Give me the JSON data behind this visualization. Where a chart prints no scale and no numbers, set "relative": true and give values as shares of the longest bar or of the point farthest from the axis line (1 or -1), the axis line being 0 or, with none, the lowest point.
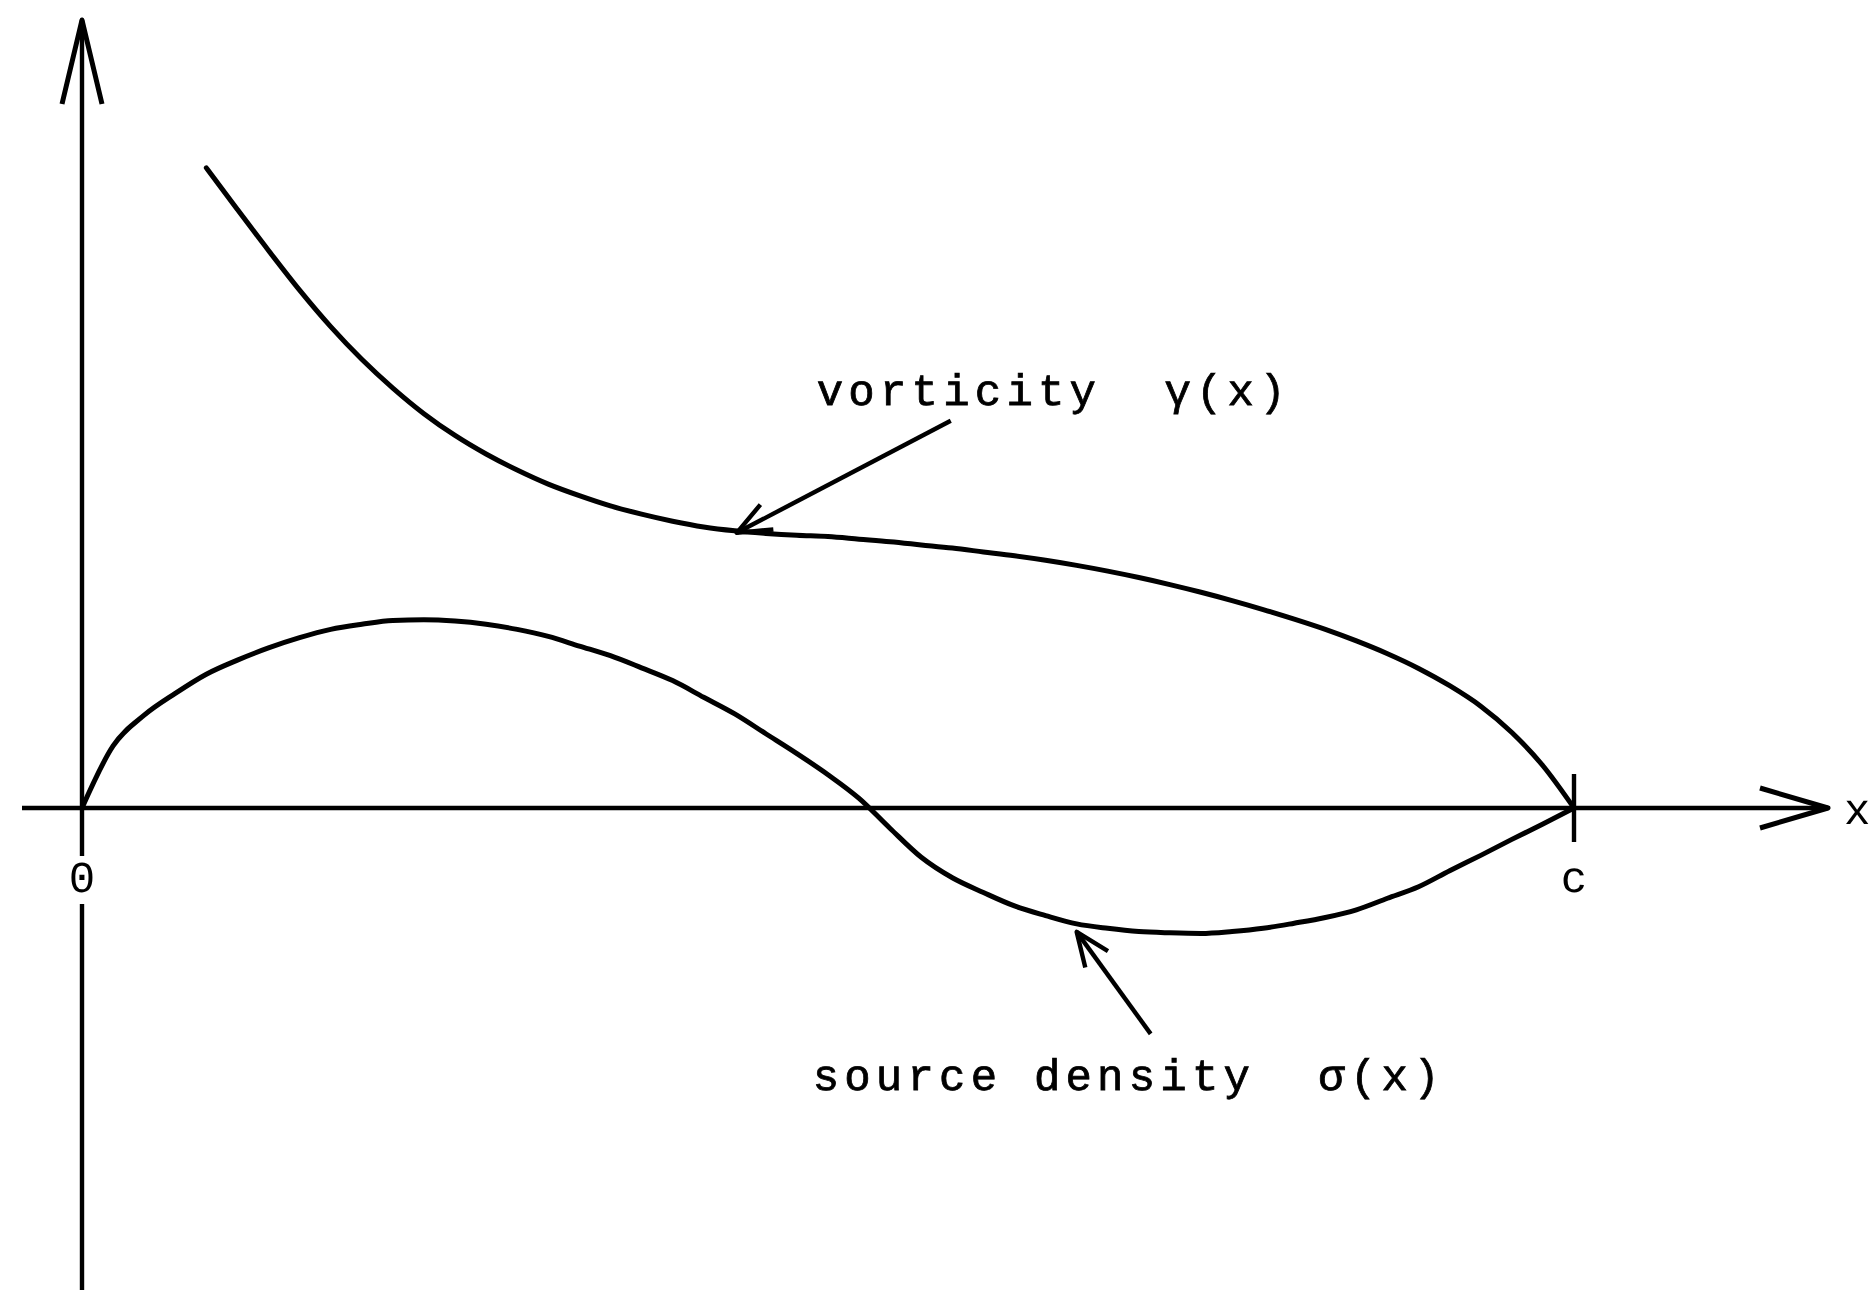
{
  "chart_data": {
    "type": "line",
    "relative": true,
    "marker": "none",
    "line_style": "solid",
    "annotations": [
      "x"
    ],
    "categories": [
      "0",
      null,
      null,
      null,
      null,
      null,
      null,
      null,
      null,
      null,
      null,
      null,
      null,
      null,
      null,
      null,
      null,
      null,
      null,
      null,
      null,
      null,
      null,
      null,
      null,
      null,
      null,
      null,
      null,
      null,
      null,
      null,
      null,
      null,
      null,
      null,
      null,
      null,
      null,
      null,
      null,
      null,
      null,
      null,
      null,
      null,
      null,
      null,
      "c"
    ],
    "series": [
      {
        "name": "vorticity  γ(x)",
        "color": "#000000",
        "values": [
          null,
          null,
          null,
          null,
          1,
          0.935,
          0.871,
          0.809,
          0.752,
          0.701,
          0.656,
          0.616,
          0.582,
          0.553,
          0.528,
          0.506,
          0.488,
          0.472,
          0.459,
          0.448,
          0.439,
          0.433,
          0.429,
          0.426,
          0.424,
          0.42,
          0.416,
          0.411,
          0.406,
          0.4,
          0.394,
          0.387,
          0.379,
          0.37,
          0.36,
          0.349,
          0.337,
          0.324,
          0.31,
          0.295,
          0.279,
          0.261,
          0.241,
          0.218,
          0.191,
          0.159,
          0.118,
          0.066,
          0
        ]
      },
      {
        "name": "source density  σ(x)",
        "color": "#000000",
        "values": [
          0,
          0.097,
          0.145,
          0.179,
          0.209,
          0.231,
          0.25,
          0.266,
          0.279,
          0.287,
          0.293,
          0.294,
          0.292,
          0.287,
          0.279,
          0.268,
          0.253,
          0.238,
          0.219,
          0.199,
          0.173,
          0.147,
          0.116,
          0.085,
          0.052,
          0.015,
          -0.032,
          -0.077,
          -0.109,
          -0.132,
          -0.153,
          -0.168,
          -0.181,
          -0.188,
          -0.193,
          -0.195,
          -0.196,
          -0.193,
          -0.188,
          -0.18,
          -0.171,
          -0.159,
          -0.141,
          -0.123,
          -0.098,
          -0.074,
          -0.049,
          -0.025,
          0
        ]
      }
    ]
  }
}
